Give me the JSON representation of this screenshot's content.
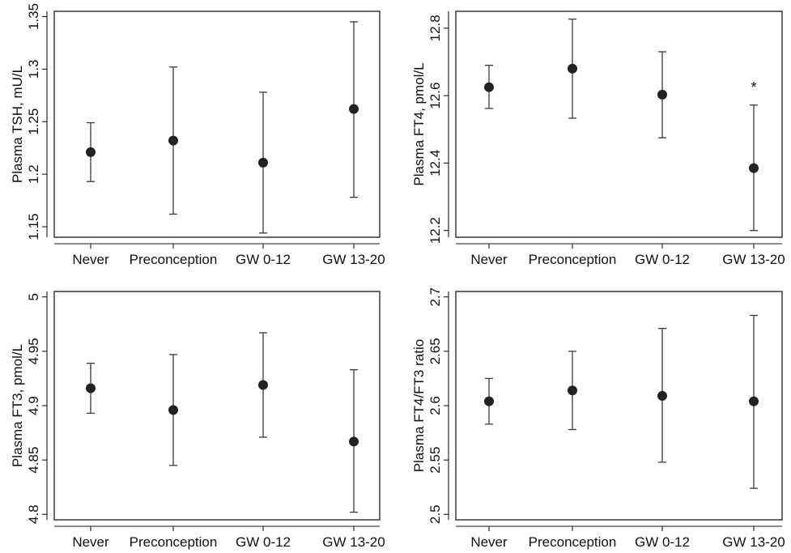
{
  "chart_data": [
    {
      "type": "scatter",
      "ylabel": "Plasma TSH, mU/L",
      "categories": [
        "Never",
        "Preconception",
        "GW 0-12",
        "GW 13-20"
      ],
      "ylim": [
        1.14,
        1.355
      ],
      "yticks": [
        1.15,
        1.2,
        1.25,
        1.3,
        1.35
      ],
      "ytick_labels": [
        "1.15",
        "1.2",
        "1.25",
        "1.3",
        "1.35"
      ],
      "values": [
        1.221,
        1.232,
        1.211,
        1.262
      ],
      "ci_low": [
        1.193,
        1.162,
        1.144,
        1.178
      ],
      "ci_high": [
        1.249,
        1.302,
        1.278,
        1.345
      ],
      "annotations": [
        "",
        "",
        "",
        ""
      ]
    },
    {
      "type": "scatter",
      "ylabel": "Plasma FT4, pmol/L",
      "categories": [
        "Never",
        "Preconception",
        "GW 0-12",
        "GW 13-20"
      ],
      "ylim": [
        12.18,
        12.85
      ],
      "yticks": [
        12.2,
        12.4,
        12.6,
        12.8
      ],
      "ytick_labels": [
        "12.2",
        "12.4",
        "12.6",
        "12.8"
      ],
      "values": [
        12.625,
        12.68,
        12.603,
        12.385
      ],
      "ci_low": [
        12.562,
        12.533,
        12.475,
        12.2
      ],
      "ci_high": [
        12.69,
        12.827,
        12.73,
        12.572
      ],
      "annotations": [
        "",
        "",
        "",
        "*"
      ]
    },
    {
      "type": "scatter",
      "ylabel": "Plasma FT3, pmol/L",
      "categories": [
        "Never",
        "Preconception",
        "GW 0-12",
        "GW 13-20"
      ],
      "ylim": [
        4.795,
        5.005
      ],
      "yticks": [
        4.8,
        4.85,
        4.9,
        4.95,
        5
      ],
      "ytick_labels": [
        "4.8",
        "4.85",
        "4.9",
        "4.95",
        "5"
      ],
      "values": [
        4.916,
        4.896,
        4.919,
        4.867
      ],
      "ci_low": [
        4.893,
        4.845,
        4.871,
        4.802
      ],
      "ci_high": [
        4.939,
        4.947,
        4.967,
        4.933
      ],
      "annotations": [
        "",
        "",
        "",
        ""
      ]
    },
    {
      "type": "scatter",
      "ylabel": "Plasma FT4/FT3 ratio",
      "categories": [
        "Never",
        "Preconception",
        "GW 0-12",
        "GW 13-20"
      ],
      "ylim": [
        2.495,
        2.705
      ],
      "yticks": [
        2.5,
        2.55,
        2.6,
        2.65,
        2.7
      ],
      "ytick_labels": [
        "2.5",
        "2.55",
        "2.6",
        "2.65",
        "2.7"
      ],
      "values": [
        2.604,
        2.614,
        2.609,
        2.604
      ],
      "ci_low": [
        2.583,
        2.578,
        2.548,
        2.524
      ],
      "ci_high": [
        2.625,
        2.65,
        2.671,
        2.683
      ],
      "annotations": [
        "",
        "",
        "",
        ""
      ]
    }
  ]
}
